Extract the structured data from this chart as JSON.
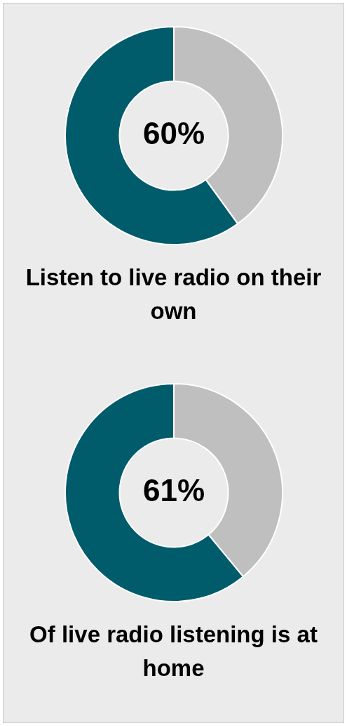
{
  "chart_data": [
    {
      "type": "donut",
      "title": "Listen to live radio on their own",
      "categories": [
        null,
        null
      ],
      "values": [
        40,
        60
      ],
      "colors": [
        "#bfbfbf",
        "#005b6a"
      ],
      "value_labels": [
        null,
        "60%"
      ]
    },
    {
      "type": "donut",
      "title": "Of live radio listening is at home",
      "categories": [
        null,
        null
      ],
      "values": [
        39,
        61
      ],
      "colors": [
        "#bfbfbf",
        "#005b6a"
      ],
      "value_labels": [
        null,
        "61%"
      ]
    }
  ]
}
